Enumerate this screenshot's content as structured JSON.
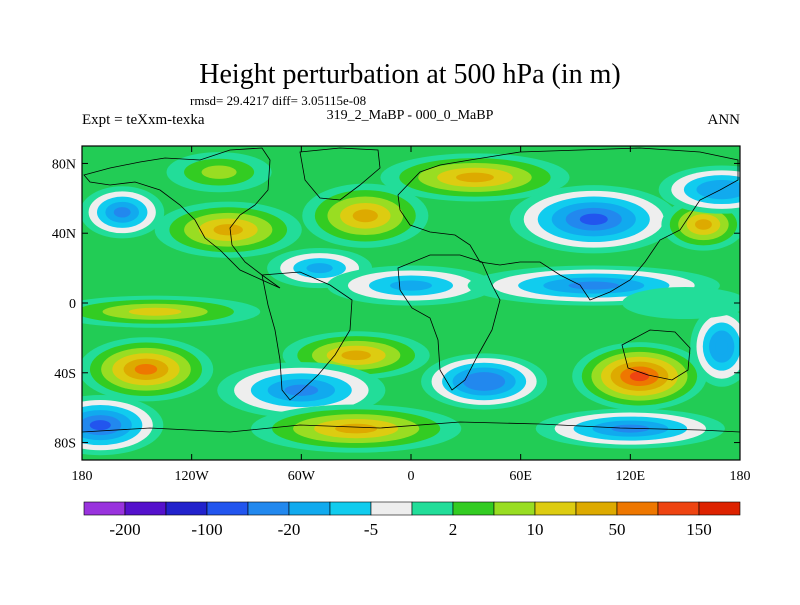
{
  "chart_data": {
    "type": "heatmap",
    "title": "Height perturbation at 500 hPa (in m)",
    "stats_text": "rmsd= 29.4217 diff= 3.05115e-08",
    "left_label": "Expt = teXxm-texka",
    "center_label": "319_2_MaBP - 000_0_MaBP",
    "right_label": "ANN",
    "xlim": [
      -180,
      180
    ],
    "ylim": [
      -90,
      90
    ],
    "x_ticks": [
      {
        "value": -180,
        "label": "180"
      },
      {
        "value": -120,
        "label": "120W"
      },
      {
        "value": -60,
        "label": "60W"
      },
      {
        "value": 0,
        "label": "0"
      },
      {
        "value": 60,
        "label": "60E"
      },
      {
        "value": 120,
        "label": "120E"
      },
      {
        "value": 180,
        "label": "180"
      }
    ],
    "y_ticks": [
      {
        "value": 80,
        "label": "80N"
      },
      {
        "value": 40,
        "label": "40N"
      },
      {
        "value": 0,
        "label": "0"
      },
      {
        "value": -40,
        "label": "40S"
      },
      {
        "value": -80,
        "label": "80S"
      }
    ],
    "colorbar": {
      "colors": [
        "#9933dd",
        "#5511cc",
        "#2222cc",
        "#2255ee",
        "#2288ee",
        "#11aaee",
        "#11ccee",
        "#eeeeee",
        "#22dd99",
        "#33cc22",
        "#99dd22",
        "#ddcc11",
        "#ddaa00",
        "#ee7700",
        "#ee4411",
        "#dd2200"
      ],
      "labels": [
        {
          "index": 1,
          "label": "-200"
        },
        {
          "index": 3,
          "label": "-100"
        },
        {
          "index": 5,
          "label": "-20"
        },
        {
          "index": 7,
          "label": "-5"
        },
        {
          "index": 9,
          "label": "2"
        },
        {
          "index": 11,
          "label": "10"
        },
        {
          "index": 13,
          "label": "50"
        },
        {
          "index": 15,
          "label": "150"
        }
      ]
    },
    "field_blobs": [
      {
        "lon": -158,
        "lat": 52,
        "rx": 20,
        "ry": 13,
        "value": -30
      },
      {
        "lon": -105,
        "lat": 75,
        "rx": 25,
        "ry": 10,
        "value": 8
      },
      {
        "lon": -100,
        "lat": 42,
        "rx": 35,
        "ry": 14,
        "value": 35
      },
      {
        "lon": -25,
        "lat": 50,
        "rx": 30,
        "ry": 16,
        "value": 40
      },
      {
        "lon": -50,
        "lat": 20,
        "rx": 25,
        "ry": 10,
        "value": -15
      },
      {
        "lon": 35,
        "lat": 72,
        "rx": 45,
        "ry": 12,
        "value": 25
      },
      {
        "lon": 100,
        "lat": 48,
        "rx": 40,
        "ry": 17,
        "value": -60
      },
      {
        "lon": 160,
        "lat": 45,
        "rx": 20,
        "ry": 13,
        "value": 45
      },
      {
        "lon": 170,
        "lat": 65,
        "rx": 30,
        "ry": 12,
        "value": -20
      },
      {
        "lon": 0,
        "lat": 10,
        "rx": 40,
        "ry": 10,
        "value": -15
      },
      {
        "lon": 100,
        "lat": 10,
        "rx": 60,
        "ry": 10,
        "value": -30
      },
      {
        "lon": -140,
        "lat": -5,
        "rx": 50,
        "ry": 8,
        "value": 15
      },
      {
        "lon": -145,
        "lat": -38,
        "rx": 32,
        "ry": 16,
        "value": 70
      },
      {
        "lon": -30,
        "lat": -30,
        "rx": 35,
        "ry": 12,
        "value": 35
      },
      {
        "lon": -60,
        "lat": -50,
        "rx": 40,
        "ry": 14,
        "value": -40
      },
      {
        "lon": 40,
        "lat": -45,
        "rx": 30,
        "ry": 14,
        "value": -50
      },
      {
        "lon": 125,
        "lat": -42,
        "rx": 32,
        "ry": 17,
        "value": 110
      },
      {
        "lon": -170,
        "lat": -70,
        "rx": 30,
        "ry": 15,
        "value": -60
      },
      {
        "lon": -30,
        "lat": -72,
        "rx": 50,
        "ry": 12,
        "value": 45
      },
      {
        "lon": 120,
        "lat": -72,
        "rx": 45,
        "ry": 10,
        "value": -40
      },
      {
        "lon": 170,
        "lat": -25,
        "rx": 15,
        "ry": 20,
        "value": -20
      },
      {
        "lon": 150,
        "lat": 0,
        "rx": 30,
        "ry": 8,
        "value": 1
      }
    ]
  }
}
